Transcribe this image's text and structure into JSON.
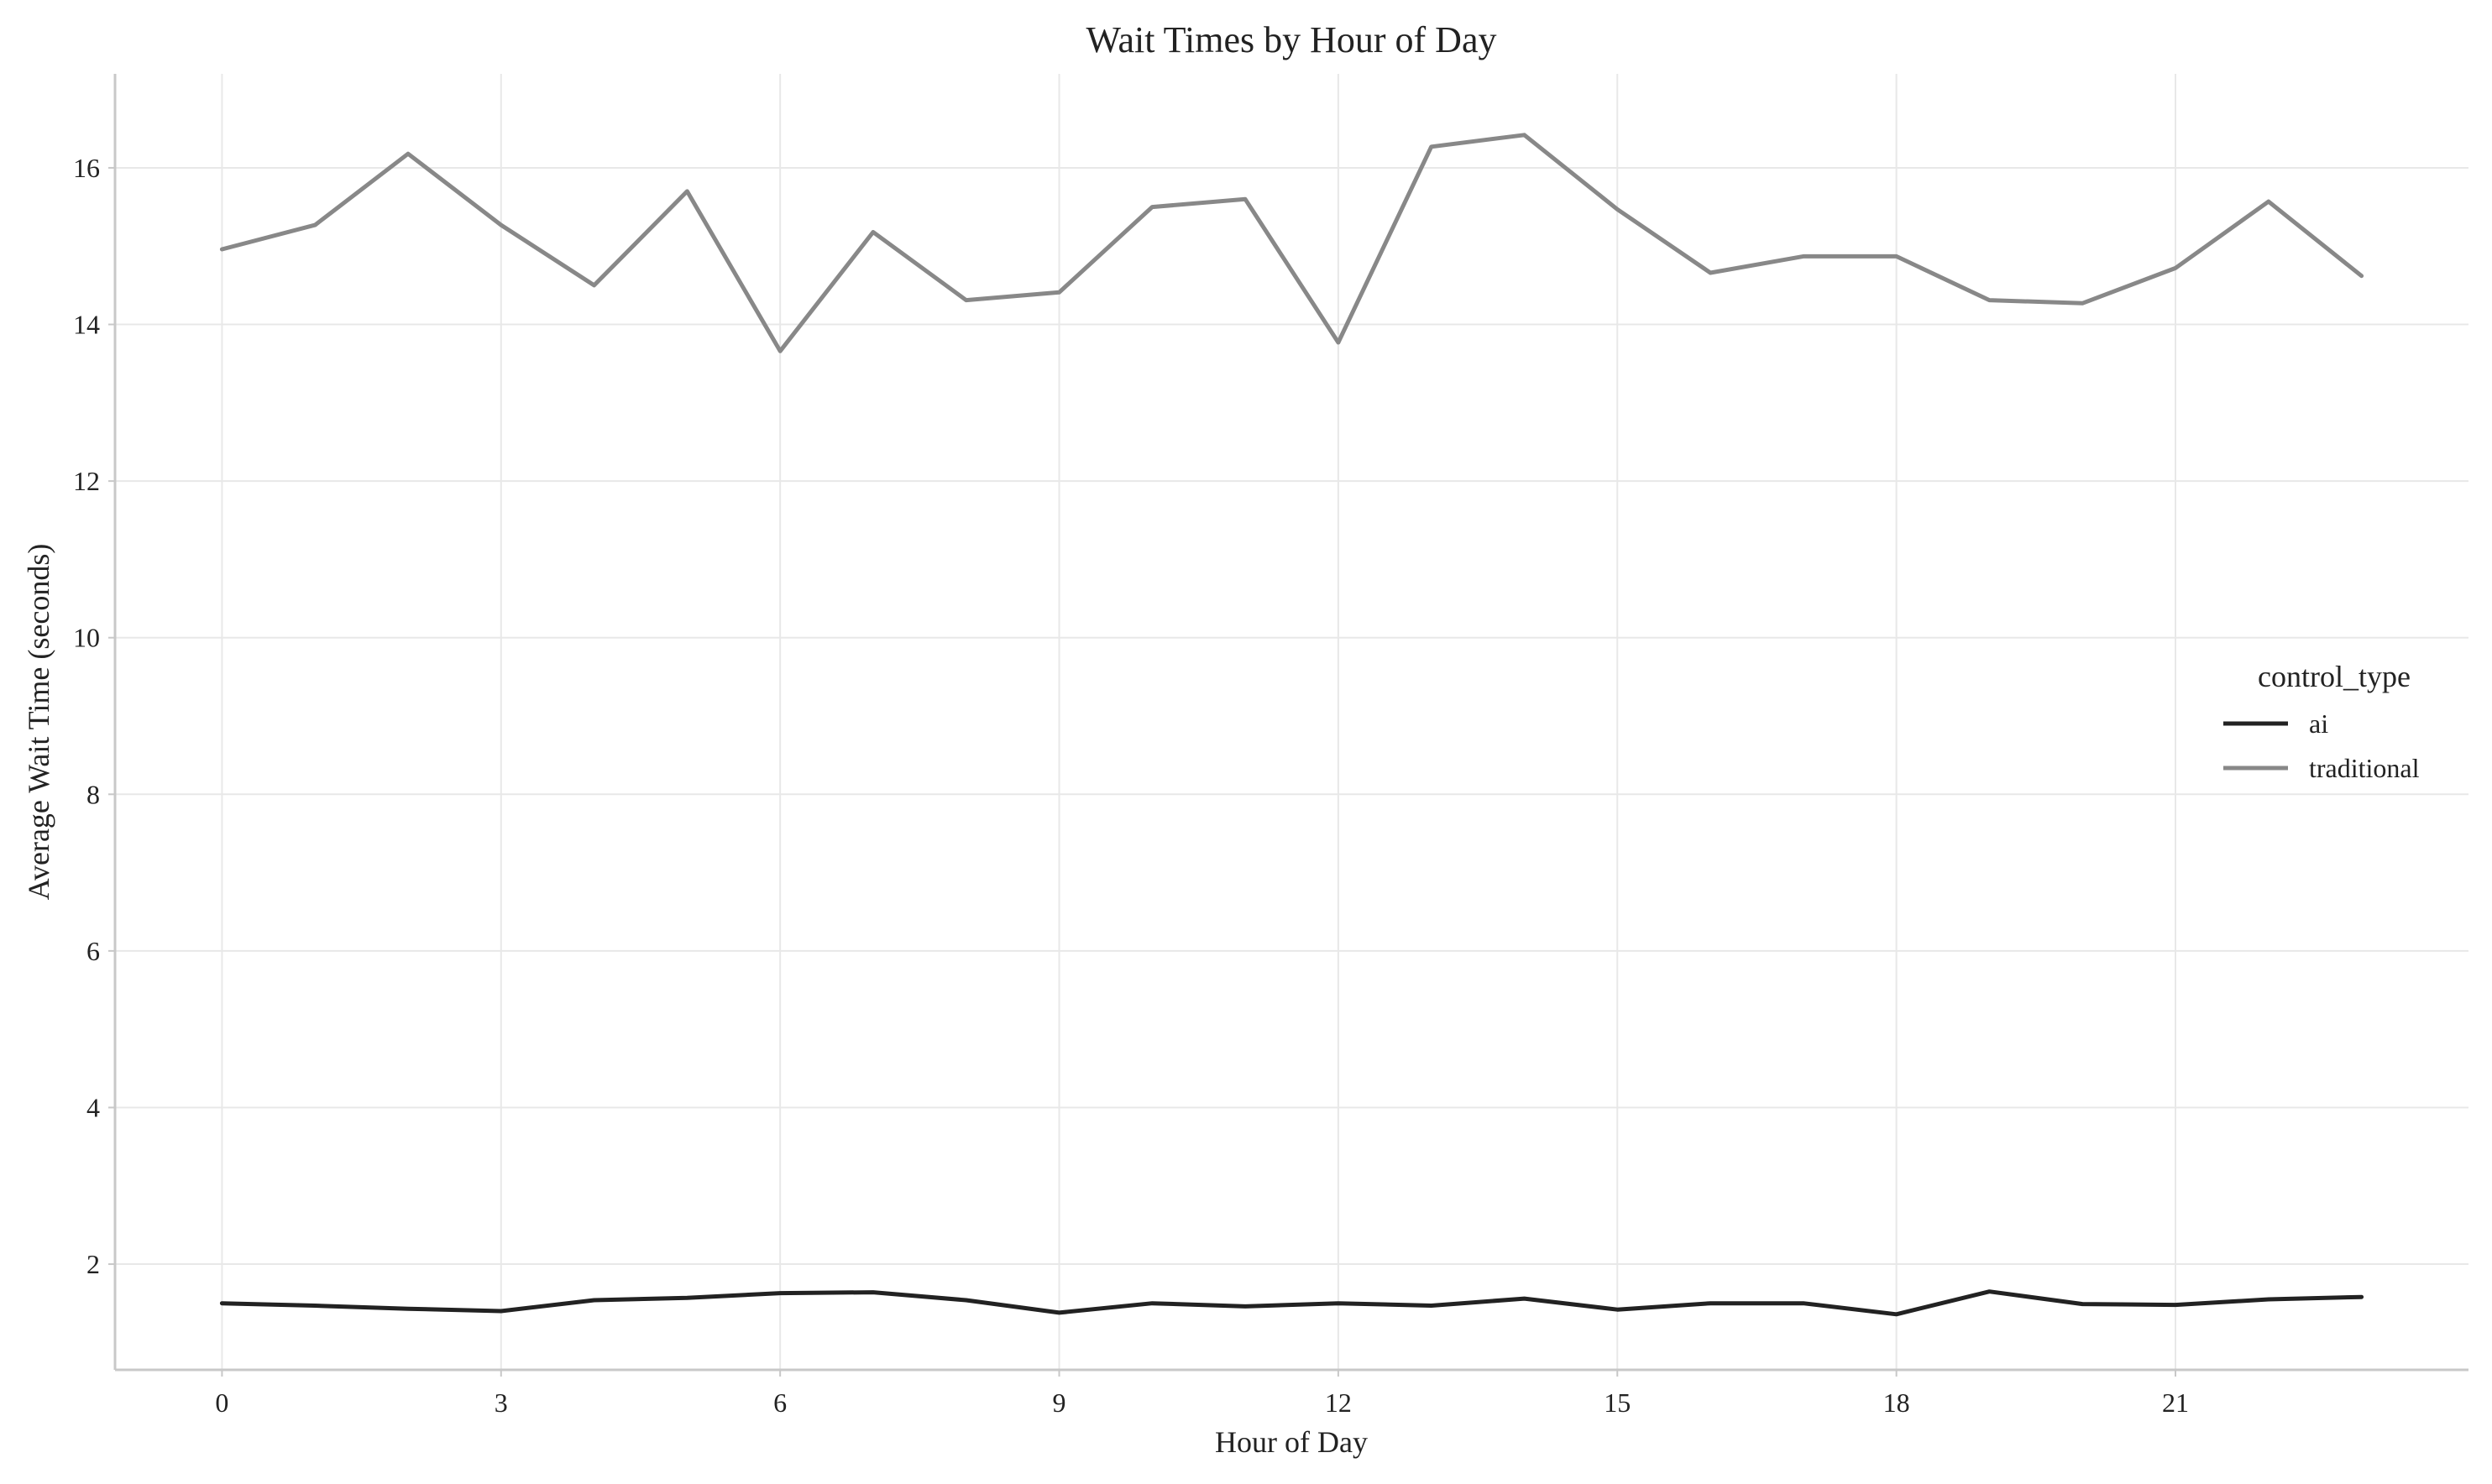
{
  "chart_data": {
    "type": "line",
    "title": "Wait Times by Hour of Day",
    "xlabel": "Hour of Day",
    "ylabel": "Average Wait Time (seconds)",
    "x": [
      0,
      1,
      2,
      3,
      4,
      5,
      6,
      7,
      8,
      9,
      10,
      11,
      12,
      13,
      14,
      15,
      16,
      17,
      18,
      19,
      20,
      21,
      22,
      23
    ],
    "xticks": [
      0,
      3,
      6,
      9,
      12,
      15,
      18,
      21
    ],
    "xtick_labels": [
      "0",
      "3",
      "6",
      "9",
      "12",
      "15",
      "18",
      "21"
    ],
    "yticks": [
      2,
      4,
      6,
      8,
      10,
      12,
      14,
      16
    ],
    "ytick_labels": [
      "2",
      "4",
      "6",
      "8",
      "10",
      "12",
      "14",
      "16"
    ],
    "xlim": [
      -1.15,
      24.15
    ],
    "ylim": [
      0.65,
      17.2
    ],
    "grid": true,
    "legend": {
      "title": "control_type",
      "placement": "center-right"
    },
    "series": [
      {
        "name": "ai",
        "color": "#222222",
        "values": [
          1.5,
          1.47,
          1.43,
          1.4,
          1.54,
          1.57,
          1.63,
          1.64,
          1.54,
          1.38,
          1.5,
          1.46,
          1.5,
          1.47,
          1.56,
          1.42,
          1.5,
          1.5,
          1.36,
          1.65,
          1.49,
          1.48,
          1.55,
          1.58
        ]
      },
      {
        "name": "traditional",
        "color": "#888888",
        "values": [
          14.96,
          15.27,
          16.18,
          15.27,
          14.5,
          15.7,
          13.66,
          15.18,
          14.31,
          14.41,
          15.5,
          15.6,
          13.77,
          16.27,
          16.42,
          15.47,
          14.66,
          14.87,
          14.87,
          14.31,
          14.27,
          14.72,
          15.57,
          14.62
        ]
      }
    ]
  }
}
